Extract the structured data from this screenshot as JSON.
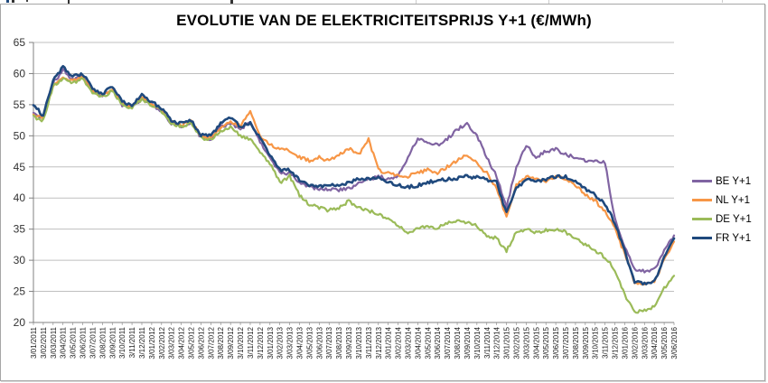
{
  "window": {
    "frame_border_color": "#a6a6a6"
  },
  "chart_data": {
    "type": "line",
    "title": "EVOLUTIE VAN DE ELEKTRICITEITSPRIJS Y+1 (€/MWh)",
    "ylabel": "",
    "xlabel": "",
    "ylim": [
      20,
      65
    ],
    "yticks": [
      65,
      60,
      55,
      50,
      45,
      40,
      35,
      30,
      25,
      20
    ],
    "grid": true,
    "legend_position": "right",
    "gridline_color": "#bfbfbf",
    "axis_color": "#808080",
    "tick_label_color": "#333333",
    "categories": [
      "3/01/2011",
      "3/02/2011",
      "3/03/2011",
      "3/04/2011",
      "3/05/2011",
      "3/06/2011",
      "3/07/2011",
      "3/08/2011",
      "3/09/2011",
      "3/10/2011",
      "3/11/2011",
      "3/12/2011",
      "3/01/2012",
      "3/02/2012",
      "3/03/2012",
      "3/04/2012",
      "3/05/2012",
      "3/06/2012",
      "3/07/2012",
      "3/08/2012",
      "3/09/2012",
      "3/10/2012",
      "3/11/2012",
      "3/12/2012",
      "3/01/2013",
      "3/02/2013",
      "3/03/2013",
      "3/04/2013",
      "3/05/2013",
      "3/06/2013",
      "3/07/2013",
      "3/08/2013",
      "3/09/2013",
      "3/10/2013",
      "3/11/2013",
      "3/12/2013",
      "3/01/2014",
      "3/02/2014",
      "3/03/2014",
      "3/04/2014",
      "3/05/2014",
      "3/06/2014",
      "3/07/2014",
      "3/08/2014",
      "3/09/2014",
      "3/10/2014",
      "3/11/2014",
      "3/12/2014",
      "3/01/2015",
      "3/02/2015",
      "3/03/2015",
      "3/04/2015",
      "3/05/2015",
      "3/06/2015",
      "3/07/2015",
      "3/08/2015",
      "3/09/2015",
      "3/10/2015",
      "3/11/2015",
      "3/12/2015",
      "3/01/2016",
      "3/02/2016",
      "3/03/2016",
      "3/04/2016",
      "3/05/2016",
      "3/06/2016"
    ],
    "series": [
      {
        "name": "BE Y+1",
        "color": "#8064A2",
        "values": [
          53.5,
          53.0,
          58.5,
          60.5,
          59.0,
          59.5,
          57.0,
          56.5,
          57.5,
          55.0,
          54.5,
          56.0,
          55.0,
          54.0,
          52.0,
          51.5,
          52.0,
          49.8,
          49.5,
          51.5,
          52.0,
          51.0,
          52.5,
          49.0,
          46.5,
          44.0,
          44.0,
          42.5,
          41.8,
          41.5,
          41.5,
          41.3,
          41.5,
          42.5,
          43.0,
          43.5,
          43.0,
          43.5,
          46.5,
          49.5,
          49.0,
          48.5,
          49.5,
          51.0,
          52.0,
          50.0,
          46.5,
          43.5,
          38.5,
          45.0,
          48.5,
          46.5,
          47.5,
          47.8,
          47.0,
          46.5,
          46.0,
          46.0,
          45.8,
          36.5,
          32.0,
          28.5,
          28.2,
          28.5,
          31.5,
          34.0
        ]
      },
      {
        "name": "NL Y+1",
        "color": "#F79646",
        "values": [
          53.5,
          52.8,
          58.0,
          59.5,
          58.8,
          59.5,
          57.2,
          56.5,
          57.5,
          55.2,
          54.8,
          56.2,
          55.2,
          54.2,
          52.2,
          51.8,
          52.3,
          50.0,
          49.8,
          51.2,
          52.3,
          51.5,
          54.0,
          50.0,
          48.5,
          48.0,
          47.5,
          46.5,
          46.0,
          46.5,
          46.0,
          47.0,
          48.0,
          47.0,
          49.5,
          44.5,
          44.0,
          43.5,
          43.5,
          44.0,
          44.5,
          44.0,
          45.0,
          46.0,
          47.0,
          45.5,
          44.0,
          41.5,
          37.0,
          42.0,
          43.5,
          43.0,
          42.5,
          43.5,
          43.0,
          42.0,
          40.5,
          39.5,
          38.0,
          35.0,
          31.0,
          26.5,
          26.0,
          26.5,
          30.0,
          33.0
        ]
      },
      {
        "name": "DE Y+1",
        "color": "#9BBB59",
        "values": [
          53.0,
          52.5,
          58.0,
          59.3,
          58.5,
          59.2,
          57.0,
          56.3,
          57.2,
          55.0,
          54.5,
          55.8,
          55.0,
          54.0,
          52.0,
          51.5,
          52.0,
          49.7,
          49.3,
          50.8,
          51.5,
          50.0,
          49.5,
          47.5,
          45.5,
          42.5,
          43.5,
          40.5,
          39.0,
          38.5,
          38.0,
          38.5,
          39.5,
          38.5,
          38.0,
          37.5,
          36.5,
          35.5,
          34.5,
          35.0,
          35.5,
          35.2,
          36.0,
          36.5,
          36.0,
          35.5,
          34.0,
          33.5,
          31.5,
          34.5,
          35.0,
          34.5,
          34.8,
          35.0,
          34.5,
          33.5,
          32.5,
          31.5,
          30.5,
          28.5,
          24.5,
          21.5,
          22.0,
          22.5,
          25.5,
          27.5
        ]
      },
      {
        "name": "FR Y+1",
        "color": "#1F497D",
        "values": [
          55.0,
          53.2,
          59.0,
          61.0,
          59.5,
          60.0,
          57.5,
          56.8,
          58.0,
          55.5,
          55.0,
          56.5,
          55.5,
          54.3,
          52.5,
          52.0,
          52.5,
          50.2,
          50.0,
          52.0,
          53.0,
          51.5,
          52.0,
          49.5,
          47.0,
          44.5,
          44.5,
          43.0,
          42.0,
          42.0,
          42.0,
          42.0,
          42.5,
          43.0,
          43.0,
          43.5,
          42.5,
          42.0,
          41.8,
          42.0,
          42.5,
          42.8,
          43.0,
          43.2,
          43.5,
          43.3,
          43.0,
          42.5,
          37.5,
          41.5,
          43.0,
          42.5,
          43.0,
          43.5,
          43.5,
          42.5,
          41.5,
          40.5,
          39.0,
          36.0,
          31.5,
          26.5,
          26.2,
          26.5,
          30.5,
          33.5
        ]
      }
    ]
  }
}
